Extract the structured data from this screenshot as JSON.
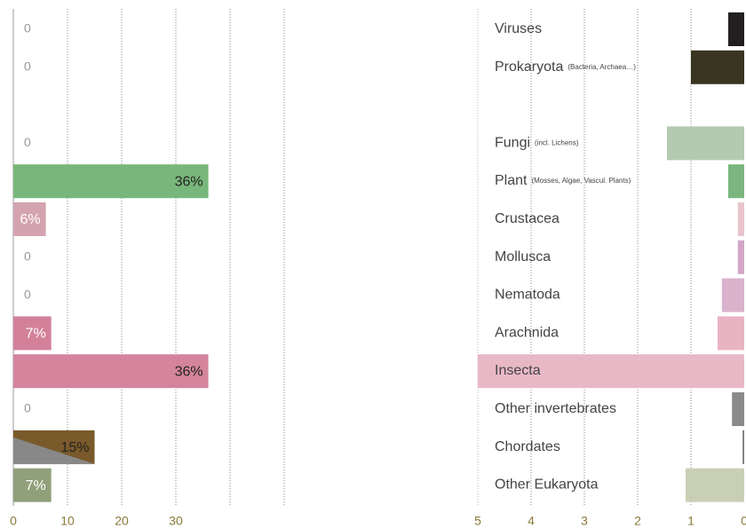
{
  "chart_data": [
    {
      "type": "bar",
      "orientation": "horizontal",
      "values": [
        0,
        0,
        null,
        0,
        36,
        6,
        0,
        0,
        7,
        36,
        0,
        15,
        7
      ],
      "value_labels": [
        "0",
        "0",
        null,
        "0",
        "36%",
        "6%",
        "0",
        "0",
        "7%",
        "36%",
        "0",
        "15%",
        "7%"
      ],
      "colors": [
        null,
        null,
        null,
        null,
        "#78b77b",
        "#d4a3b0",
        null,
        null,
        "#d4809a",
        "#d4849c",
        null,
        "#7a5a2a",
        "#8fa07a"
      ],
      "xlim": [
        0,
        50
      ],
      "xticks": [
        0,
        10,
        20,
        30
      ],
      "xgrid": [
        10,
        20,
        30,
        40,
        50
      ]
    },
    {
      "type": "bar",
      "orientation": "horizontal",
      "reversed": true,
      "categories": [
        "Viruses",
        "Prokaryota",
        null,
        "Fungi",
        "Plant",
        "Crustacea",
        "Mollusca",
        "Nematoda",
        "Arachnida",
        "Insecta",
        "Other invertebrates",
        "Chordates",
        "Other Eukaryota"
      ],
      "category_notes": [
        null,
        "(Bacteria, Archaea…)",
        null,
        "(incl. Lichens)",
        "(Mosses, Algae, Vascul. Plants)",
        null,
        null,
        null,
        null,
        null,
        null,
        null,
        null
      ],
      "values": [
        0.3,
        1.0,
        null,
        1.45,
        0.3,
        0.12,
        0.12,
        0.42,
        0.5,
        5,
        0.23,
        0.03,
        1.1
      ],
      "colors": [
        "#231f20",
        "#3a3520",
        null,
        "#b5c9b0",
        "#7bb57f",
        "#e8c4cc",
        "#d3a6c8",
        "#d9b3cc",
        "#e8b3c2",
        "#e8b8c6",
        "#8a8a8a",
        "#777777",
        "#c9cfb5"
      ],
      "xlim": [
        5,
        0
      ],
      "xticks": [
        5,
        4,
        3,
        2,
        1,
        0
      ]
    }
  ]
}
